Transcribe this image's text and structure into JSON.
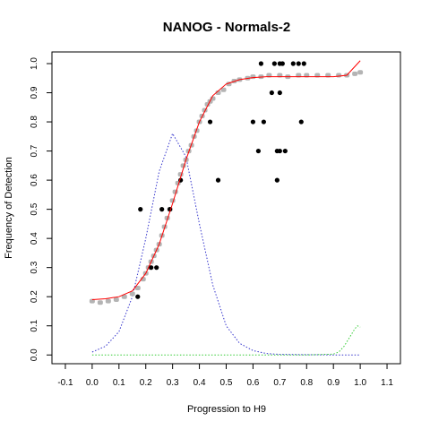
{
  "chart_data": {
    "type": "scatter",
    "title": "NANOG - Normals-2",
    "xlabel": "Progression to H9",
    "ylabel": "Frequency of Detection",
    "xlim": [
      -0.15,
      1.15
    ],
    "ylim": [
      -0.03,
      1.04
    ],
    "x_ticks": [
      -0.1,
      0.0,
      0.1,
      0.2,
      0.3,
      0.4,
      0.5,
      0.6,
      0.7,
      0.8,
      0.9,
      1.0,
      1.1
    ],
    "x_tick_labels": [
      "-0.1",
      "0.0",
      "0.1",
      "0.2",
      "0.3",
      "0.4",
      "0.5",
      "0.6",
      "0.7",
      "0.8",
      "0.9",
      "1.0",
      "1.1"
    ],
    "y_ticks": [
      0.0,
      0.1,
      0.2,
      0.3,
      0.4,
      0.5,
      0.6,
      0.7,
      0.8,
      0.9,
      1.0
    ],
    "y_tick_labels": [
      "0.0",
      "0.1",
      "0.2",
      "0.3",
      "0.4",
      "0.5",
      "0.6",
      "0.7",
      "0.8",
      "0.9",
      "1.0"
    ],
    "grid": false,
    "colors": {
      "gray_points": "#b4b4b4",
      "black_points": "#000000",
      "fit_line": "#ff0000",
      "blue_density": "#3333cc",
      "green_density": "#33cc33"
    },
    "series": [
      {
        "kind": "points",
        "color": "gray",
        "x": [
          0.0,
          0.03,
          0.06,
          0.09,
          0.12,
          0.15,
          0.17,
          0.19,
          0.2,
          0.21,
          0.22,
          0.23,
          0.24,
          0.25,
          0.26,
          0.27,
          0.28,
          0.29,
          0.3,
          0.31,
          0.32,
          0.33,
          0.34,
          0.35,
          0.36,
          0.37,
          0.38,
          0.39,
          0.4,
          0.41,
          0.42,
          0.43,
          0.44,
          0.45,
          0.47,
          0.49,
          0.51,
          0.53,
          0.55,
          0.58,
          0.6,
          0.63,
          0.66,
          0.7,
          0.73,
          0.77,
          0.8,
          0.84,
          0.88,
          0.92,
          0.95,
          0.98,
          1.0
        ],
        "y": [
          0.185,
          0.18,
          0.185,
          0.19,
          0.2,
          0.21,
          0.23,
          0.26,
          0.28,
          0.3,
          0.32,
          0.34,
          0.36,
          0.38,
          0.41,
          0.44,
          0.47,
          0.5,
          0.53,
          0.56,
          0.59,
          0.62,
          0.65,
          0.67,
          0.7,
          0.72,
          0.75,
          0.77,
          0.8,
          0.82,
          0.84,
          0.86,
          0.87,
          0.88,
          0.9,
          0.91,
          0.93,
          0.94,
          0.945,
          0.95,
          0.955,
          0.955,
          0.96,
          0.96,
          0.955,
          0.96,
          0.96,
          0.96,
          0.96,
          0.96,
          0.96,
          0.965,
          0.97
        ]
      },
      {
        "kind": "points",
        "color": "black",
        "x": [
          0.17,
          0.18,
          0.22,
          0.24,
          0.26,
          0.29,
          0.33,
          0.44,
          0.47,
          0.6,
          0.62,
          0.63,
          0.64,
          0.67,
          0.68,
          0.69,
          0.69,
          0.7,
          0.7,
          0.7,
          0.71,
          0.72,
          0.75,
          0.77,
          0.78,
          0.79
        ],
        "y": [
          0.2,
          0.5,
          0.3,
          0.3,
          0.5,
          0.5,
          0.6,
          0.8,
          0.6,
          0.8,
          0.7,
          1.0,
          0.8,
          0.9,
          1.0,
          0.7,
          0.6,
          0.9,
          1.0,
          0.7,
          1.0,
          0.7,
          1.0,
          1.0,
          0.8,
          1.0
        ]
      },
      {
        "kind": "line",
        "color": "red",
        "x": [
          0.0,
          0.05,
          0.1,
          0.15,
          0.2,
          0.25,
          0.3,
          0.35,
          0.4,
          0.45,
          0.5,
          0.55,
          0.6,
          0.65,
          0.7,
          0.75,
          0.8,
          0.85,
          0.9,
          0.95,
          0.97,
          1.0
        ],
        "y": [
          0.19,
          0.193,
          0.2,
          0.22,
          0.28,
          0.38,
          0.52,
          0.67,
          0.8,
          0.89,
          0.93,
          0.945,
          0.952,
          0.955,
          0.955,
          0.955,
          0.955,
          0.955,
          0.955,
          0.96,
          0.98,
          1.01
        ]
      },
      {
        "kind": "line",
        "color": "blue",
        "style": "dotted",
        "x": [
          0.0,
          0.05,
          0.1,
          0.15,
          0.2,
          0.25,
          0.3,
          0.35,
          0.4,
          0.45,
          0.5,
          0.55,
          0.6,
          0.65,
          0.7,
          0.8,
          0.9,
          1.0
        ],
        "y": [
          0.01,
          0.03,
          0.08,
          0.2,
          0.4,
          0.63,
          0.76,
          0.68,
          0.45,
          0.24,
          0.1,
          0.04,
          0.015,
          0.005,
          0.002,
          0.001,
          0.0,
          0.0
        ]
      },
      {
        "kind": "line",
        "color": "green",
        "style": "dotted",
        "x": [
          0.0,
          0.2,
          0.4,
          0.6,
          0.8,
          0.9,
          0.92,
          0.94,
          0.96,
          0.98,
          0.99,
          1.0
        ],
        "y": [
          0.0,
          0.0,
          0.0,
          0.0,
          0.0,
          0.003,
          0.01,
          0.03,
          0.06,
          0.09,
          0.1,
          0.095
        ]
      }
    ]
  }
}
